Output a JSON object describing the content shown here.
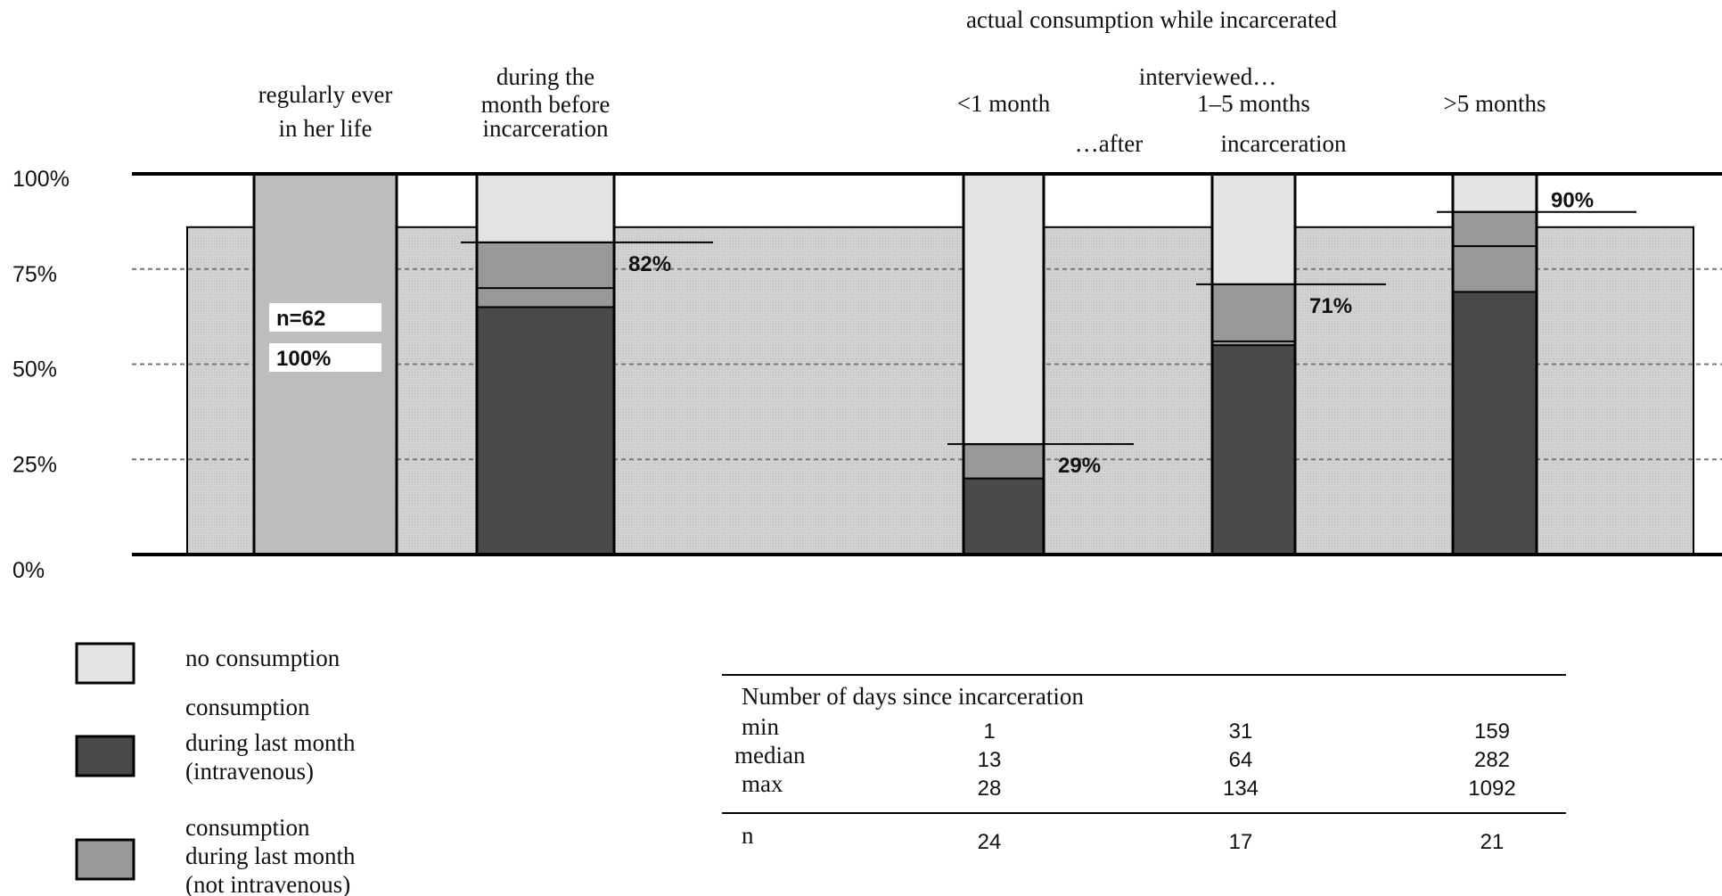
{
  "chart_data": {
    "type": "bar",
    "stacked": true,
    "ylim": [
      0,
      100
    ],
    "yticks": [
      "0%",
      "25%",
      "50%",
      "75%",
      "100%"
    ],
    "header": {
      "main": "actual consumption while incarcerated",
      "interviewed": "interviewed…",
      "after": "…after",
      "incarceration": "incarceration"
    },
    "background_band_percent": 86,
    "categories": [
      {
        "lines": [
          "regularly ever",
          "in her life"
        ]
      },
      {
        "lines": [
          "during the",
          "month before",
          "incarceration"
        ]
      },
      {
        "lines": [
          "<1 month"
        ]
      },
      {
        "lines": [
          "1–5 months"
        ]
      },
      {
        "lines": [
          ">5 months"
        ]
      }
    ],
    "series": [
      {
        "name": "consumption during last month (intravenous)",
        "color": "#4a4a4a",
        "values": [
          null,
          65,
          20,
          55,
          69
        ]
      },
      {
        "name": "consumption during last month (not intravenous)",
        "color": "#999999",
        "values": [
          null,
          17,
          9,
          16,
          21
        ]
      },
      {
        "name": "no consumption",
        "color": "#e3e3e3",
        "values": [
          null,
          18,
          71,
          29,
          10
        ]
      }
    ],
    "separator_values": [
      null,
      70,
      null,
      56,
      81
    ],
    "first_bar": {
      "value": 100,
      "color": "#bdbdbd",
      "labels": [
        "n=62",
        "100%"
      ]
    },
    "totals": [
      {
        "bar": 1,
        "label": "82%",
        "value": 82
      },
      {
        "bar": 2,
        "label": "29%",
        "value": 29
      },
      {
        "bar": 3,
        "label": "71%",
        "value": 71
      },
      {
        "bar": 4,
        "label": "90%",
        "value": 90
      }
    ],
    "legend": [
      {
        "color": "#e3e3e3",
        "lines": [
          "no  consumption"
        ]
      },
      {
        "color": "#4a4a4a",
        "lines": [
          "consumption",
          "during last month",
          "(intravenous)"
        ]
      },
      {
        "color": "#999999",
        "lines": [
          "consumption",
          "during last month",
          "(not intravenous)"
        ]
      }
    ],
    "table": {
      "title": "Number of days since incarceration",
      "rows": [
        {
          "label": "min",
          "values": [
            "1",
            "31",
            "159"
          ]
        },
        {
          "label": "median",
          "values": [
            "13",
            "64",
            "282"
          ]
        },
        {
          "label": "max",
          "values": [
            "28",
            "134",
            "1092"
          ]
        }
      ],
      "n_row": {
        "label": "n",
        "values": [
          "24",
          "17",
          "21"
        ]
      }
    }
  }
}
